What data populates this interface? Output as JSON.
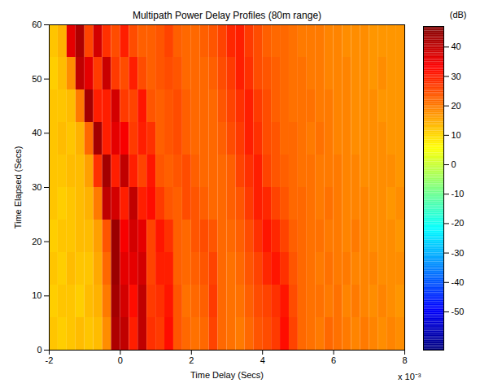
{
  "chart_data": {
    "type": "heatmap",
    "title": "Multipath Power Delay Profiles (80m range)",
    "xlabel": "Time Delay (Secs)",
    "ylabel": "Time Elapsed (Secs)",
    "annotation": "x 10⁻³",
    "xlim": [
      -2,
      8
    ],
    "xticks": [
      -2,
      0,
      2,
      4,
      6,
      8
    ],
    "ylim": [
      0,
      60
    ],
    "yticks": [
      0,
      10,
      20,
      30,
      40,
      50,
      60
    ],
    "x": [
      -1.875,
      -1.625,
      -1.375,
      -1.125,
      -0.875,
      -0.625,
      -0.375,
      -0.125,
      0.125,
      0.375,
      0.625,
      0.875,
      1.125,
      1.375,
      1.625,
      1.875,
      2.125,
      2.375,
      2.625,
      2.875,
      3.125,
      3.375,
      3.625,
      3.875,
      4.125,
      4.375,
      4.625,
      4.875,
      5.125,
      5.375,
      5.625,
      5.875,
      6.125,
      6.375,
      6.625,
      6.875,
      7.125,
      7.375,
      7.625,
      7.875
    ],
    "y": [
      3,
      9,
      15,
      21,
      27,
      33,
      39,
      45,
      51,
      57
    ],
    "values": [
      [
        12,
        11,
        12,
        13,
        12,
        13,
        18,
        42,
        40,
        30,
        40,
        28,
        27,
        32,
        24,
        22,
        21,
        22,
        26,
        22,
        21,
        20,
        22,
        24,
        25,
        27,
        32,
        26,
        22,
        21,
        20,
        22,
        21,
        20,
        19,
        20,
        19,
        18,
        19,
        18
      ],
      [
        11,
        12,
        12,
        11,
        13,
        14,
        20,
        43,
        38,
        32,
        40,
        27,
        28,
        31,
        24,
        21,
        22,
        23,
        27,
        22,
        21,
        21,
        23,
        25,
        26,
        28,
        31,
        25,
        22,
        21,
        21,
        20,
        21,
        19,
        20,
        19,
        18,
        19,
        18,
        17
      ],
      [
        12,
        11,
        13,
        12,
        12,
        15,
        22,
        44,
        36,
        36,
        38,
        26,
        30,
        30,
        23,
        22,
        23,
        24,
        26,
        22,
        21,
        22,
        24,
        26,
        29,
        31,
        28,
        24,
        22,
        21,
        20,
        21,
        20,
        20,
        19,
        19,
        19,
        18,
        18,
        18
      ],
      [
        11,
        12,
        12,
        13,
        13,
        16,
        24,
        44,
        34,
        38,
        36,
        26,
        31,
        28,
        23,
        22,
        24,
        25,
        24,
        22,
        22,
        23,
        25,
        28,
        31,
        29,
        26,
        23,
        22,
        21,
        21,
        20,
        20,
        19,
        20,
        19,
        18,
        18,
        18,
        17
      ],
      [
        12,
        11,
        12,
        13,
        14,
        20,
        40,
        38,
        30,
        40,
        30,
        32,
        27,
        24,
        23,
        25,
        24,
        23,
        22,
        22,
        23,
        24,
        27,
        30,
        29,
        26,
        24,
        22,
        22,
        21,
        20,
        21,
        20,
        19,
        19,
        19,
        18,
        18,
        17,
        18
      ],
      [
        12,
        12,
        13,
        13,
        16,
        28,
        43,
        30,
        40,
        30,
        26,
        31,
        24,
        23,
        24,
        25,
        23,
        22,
        22,
        22,
        23,
        26,
        28,
        30,
        26,
        24,
        23,
        22,
        21,
        21,
        20,
        20,
        20,
        19,
        19,
        18,
        18,
        18,
        18,
        17
      ],
      [
        12,
        13,
        12,
        14,
        22,
        43,
        30,
        36,
        34,
        27,
        30,
        28,
        23,
        24,
        25,
        23,
        22,
        22,
        22,
        23,
        25,
        27,
        30,
        28,
        25,
        24,
        22,
        22,
        21,
        20,
        21,
        20,
        19,
        19,
        18,
        18,
        18,
        18,
        17,
        17
      ],
      [
        12,
        12,
        13,
        20,
        43,
        30,
        30,
        38,
        27,
        26,
        31,
        24,
        23,
        24,
        25,
        23,
        22,
        22,
        22,
        24,
        26,
        28,
        30,
        27,
        25,
        23,
        22,
        21,
        21,
        21,
        20,
        20,
        19,
        19,
        18,
        18,
        18,
        17,
        17,
        17
      ],
      [
        11,
        13,
        18,
        40,
        36,
        27,
        39,
        27,
        25,
        30,
        25,
        23,
        24,
        25,
        24,
        22,
        22,
        22,
        23,
        25,
        27,
        30,
        28,
        25,
        24,
        23,
        22,
        21,
        21,
        20,
        20,
        19,
        19,
        19,
        18,
        18,
        17,
        18,
        17,
        17
      ],
      [
        12,
        14,
        36,
        42,
        26,
        38,
        28,
        25,
        30,
        25,
        23,
        23,
        24,
        26,
        23,
        22,
        22,
        23,
        24,
        26,
        29,
        30,
        27,
        25,
        23,
        22,
        22,
        21,
        20,
        20,
        20,
        19,
        19,
        18,
        18,
        18,
        17,
        17,
        17,
        17
      ]
    ],
    "colorbar": {
      "label": "(dB)",
      "lim": [
        -63,
        47
      ],
      "ticks": [
        -50,
        -40,
        -30,
        -20,
        -10,
        0,
        10,
        20,
        30,
        40
      ]
    }
  }
}
